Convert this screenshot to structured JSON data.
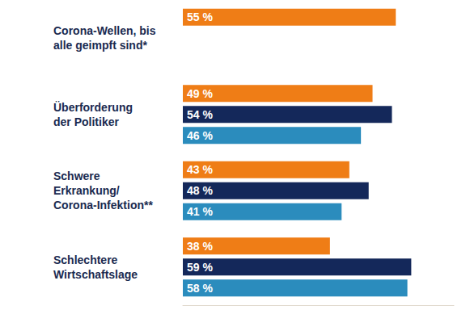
{
  "chart_data": {
    "type": "bar",
    "orientation": "horizontal",
    "categories": [
      "Corona-Wellen, bis\nalle geimpft sind*",
      "Überforderung\nder Politiker",
      "Schwere\nErkrankung/\nCorona-Infektion**",
      "Schlechtere\nWirtschaftslage"
    ],
    "series": [
      {
        "color": "#ef7d16",
        "values": [
          55,
          49,
          43,
          38
        ],
        "value_labels": [
          "55 %",
          "49 %",
          "43 %",
          "38 %"
        ]
      },
      {
        "color": "#14285a",
        "values": [
          null,
          54,
          48,
          59
        ],
        "value_labels": [
          null,
          "54 %",
          "48 %",
          "59 %"
        ]
      },
      {
        "color": "#2b8cbd",
        "values": [
          null,
          46,
          41,
          58
        ],
        "value_labels": [
          null,
          "46 %",
          "41 %",
          "58 %"
        ]
      }
    ],
    "xlim": [
      0,
      70
    ],
    "data_labels": true,
    "tick_labels": "y",
    "grid": false
  }
}
